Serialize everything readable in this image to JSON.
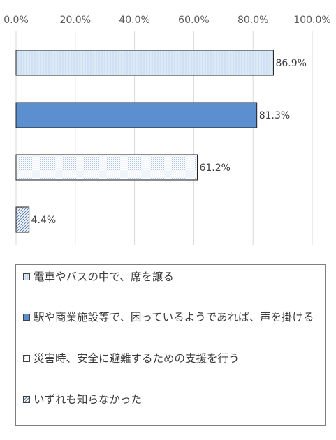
{
  "chart_data": {
    "type": "bar",
    "orientation": "horizontal",
    "x_ticks": [
      "0.0%",
      "20.0%",
      "40.0%",
      "60.0%",
      "80.0%",
      "100.0%"
    ],
    "xlim": [
      0,
      100
    ],
    "grid": true,
    "legend_position": "bottom",
    "categories": [
      "電車やバスの中で、席を譲る",
      "駅や商業施設等で、困っているようであれば、声を掛ける",
      "災害時、安全に避難するための支援を行う",
      "いずれも知らなかった"
    ],
    "values": [
      86.9,
      81.3,
      61.2,
      4.4
    ],
    "value_labels": [
      "86.9%",
      "81.3%",
      "61.2%",
      "4.4%"
    ],
    "colors": [
      "#dce9f7",
      "#5b8fd0",
      "#ffffff",
      "#ffffff"
    ],
    "patterns": [
      "vertical-lines",
      "solid",
      "dots",
      "diagonal-lines"
    ],
    "border_color": "#1f1f1f",
    "grid_color": "#d9d9d9"
  }
}
